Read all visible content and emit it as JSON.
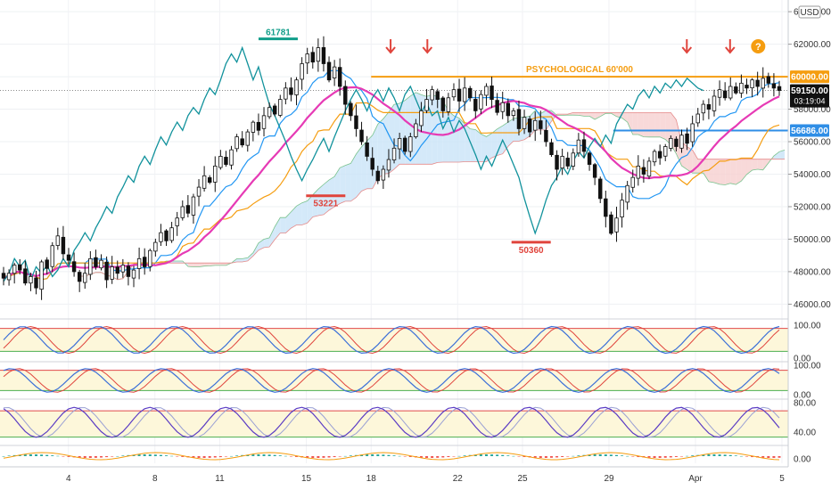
{
  "chart_data": {
    "type": "candlestick",
    "currency": "USD",
    "main_pane": {
      "y_ticks": [
        "64000.00",
        "62000.00",
        "58000.00",
        "56000.00",
        "54000.00",
        "52000.00",
        "50000.00",
        "48000.00",
        "46000.00"
      ],
      "ylim": [
        45200,
        64500
      ],
      "price_labels": [
        {
          "value": 60000,
          "text": "60000.00",
          "color": "#f59d10"
        },
        {
          "value": 59150,
          "text": "59150.00",
          "sub": "03:19:04",
          "color": "#111111"
        },
        {
          "value": 56686,
          "text": "56686.00",
          "color": "#2f8ee6"
        }
      ],
      "levels": [
        {
          "name": "PSYCHOLOGICAL 60'000",
          "value": 60000,
          "x_from_day": 18,
          "x_to_day": 38.2,
          "color": "#f59d10"
        },
        {
          "name": "56686",
          "value": 56686,
          "x_from_day": 29.2,
          "x_to_day": 38.2,
          "color": "#2f8ee6"
        }
      ],
      "annotations": [
        {
          "text": "61781",
          "day": 13.7,
          "value": 61781,
          "color": "#119e8a",
          "pos": "above"
        },
        {
          "text": "53221",
          "day": 15.9,
          "value": 53221,
          "color": "#e0443c",
          "pos": "below"
        },
        {
          "text": "50360",
          "day": 25.4,
          "value": 50360,
          "color": "#e0443c",
          "pos": "below"
        }
      ],
      "arrows_days": [
        18.9,
        20.6,
        32.6,
        34.6
      ],
      "question_mark_day": 35.9,
      "candles_close": [
        47600,
        47900,
        48400,
        48100,
        47300,
        47700,
        47000,
        48600,
        48200,
        49600,
        50200,
        49100,
        48700,
        48000,
        47400,
        47900,
        48800,
        48300,
        48700,
        47500,
        48300,
        47900,
        48400,
        47700,
        48100,
        48800,
        48300,
        49300,
        49800,
        50400,
        49900,
        50700,
        51300,
        52000,
        51600,
        52600,
        53200,
        53900,
        53500,
        54500,
        55100,
        54600,
        55500,
        56300,
        55800,
        56600,
        57200,
        56700,
        57600,
        58100,
        57700,
        58600,
        59300,
        58900,
        59800,
        60800,
        61400,
        60900,
        61781,
        60800,
        59800,
        60600,
        59400,
        58300,
        57600,
        56800,
        56000,
        55100,
        54300,
        53600,
        54300,
        54900,
        55600,
        56200,
        55400,
        56300,
        57100,
        57900,
        58600,
        59200,
        58600,
        57900,
        58700,
        59200,
        58500,
        59300,
        58700,
        57900,
        58900,
        59400,
        58600,
        57800,
        58400,
        57600,
        57900,
        56800,
        57500,
        56600,
        57300,
        56800,
        56000,
        55200,
        54300,
        55100,
        54500,
        55300,
        56100,
        55400,
        54600,
        53800,
        52500,
        51400,
        50360,
        51300,
        52400,
        53300,
        53800,
        54500,
        54000,
        54800,
        55400,
        55000,
        55700,
        56200,
        55700,
        56400,
        55900,
        57100,
        57700,
        58300,
        58000,
        58800,
        59200,
        58700,
        59400,
        59000,
        59600,
        59300,
        59800,
        59400,
        59900,
        59600,
        59300,
        59150
      ]
    },
    "oscillators": [
      {
        "type": "stochastic",
        "ylim": [
          0,
          100
        ],
        "ticks": [
          "100.00",
          "0.00"
        ],
        "levels": [
          80,
          20
        ],
        "lines": 2
      },
      {
        "type": "stochastic_rsi",
        "ylim": [
          0,
          100
        ],
        "ticks": [
          "100.00",
          "0.00"
        ],
        "levels": [
          80,
          20
        ],
        "lines": 2
      },
      {
        "type": "rsi",
        "ylim": [
          20,
          85
        ],
        "ticks": [
          "80.00",
          "40.00"
        ],
        "levels": [
          70,
          30
        ],
        "lines": 2
      },
      {
        "type": "macd",
        "ticks": [
          "0.00"
        ]
      }
    ],
    "x_ticks": [
      {
        "label": "4",
        "day": 4
      },
      {
        "label": "8",
        "day": 8
      },
      {
        "label": "11",
        "day": 11
      },
      {
        "label": "15",
        "day": 15
      },
      {
        "label": "18",
        "day": 18
      },
      {
        "label": "22",
        "day": 22
      },
      {
        "label": "25",
        "day": 25
      },
      {
        "label": "29",
        "day": 29
      },
      {
        "label": "Apr",
        "day": 33
      },
      {
        "label": "5",
        "day": 37
      }
    ],
    "colors": {
      "up": "#ffffff",
      "down": "#111111",
      "wick": "#111111",
      "conversion": "#2196f3",
      "base": "#f59d10",
      "lagging": "#11929c",
      "ema": "#e63ab5",
      "cloud_bull": "#c9e4f7",
      "cloud_bear": "#f6cfcf",
      "bg_band": "#fdf7da"
    }
  }
}
